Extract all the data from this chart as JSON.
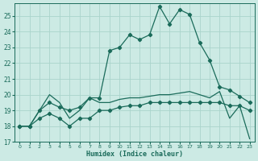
{
  "xlabel": "Humidex (Indice chaleur)",
  "bg_color": "#cceae4",
  "grid_color": "#aad4cc",
  "line_color": "#1a6b5a",
  "xlim": [
    -0.5,
    23.5
  ],
  "ylim": [
    17,
    25.8
  ],
  "yticks": [
    17,
    18,
    19,
    20,
    21,
    22,
    23,
    24,
    25
  ],
  "xticks": [
    0,
    1,
    2,
    3,
    4,
    5,
    6,
    7,
    8,
    9,
    10,
    11,
    12,
    13,
    14,
    15,
    16,
    17,
    18,
    19,
    20,
    21,
    22,
    23
  ],
  "series1": [
    18.0,
    18.0,
    19.0,
    19.5,
    19.2,
    19.0,
    19.2,
    19.8,
    19.8,
    22.8,
    23.0,
    23.8,
    23.5,
    23.8,
    25.6,
    24.5,
    25.4,
    25.1,
    23.3,
    22.2,
    20.5,
    20.3,
    19.9,
    19.5
  ],
  "series2": [
    18.0,
    18.0,
    18.5,
    18.8,
    18.5,
    18.0,
    18.5,
    18.5,
    19.0,
    19.0,
    19.2,
    19.3,
    19.3,
    19.5,
    19.5,
    19.5,
    19.5,
    19.5,
    19.5,
    19.5,
    19.5,
    19.3,
    19.3,
    19.0
  ],
  "series3": [
    18.0,
    18.0,
    19.0,
    20.0,
    19.5,
    18.5,
    19.0,
    19.8,
    19.5,
    19.5,
    19.7,
    19.8,
    19.8,
    19.9,
    20.0,
    20.0,
    20.1,
    20.2,
    20.0,
    19.8,
    20.2,
    18.5,
    19.3,
    17.2
  ]
}
